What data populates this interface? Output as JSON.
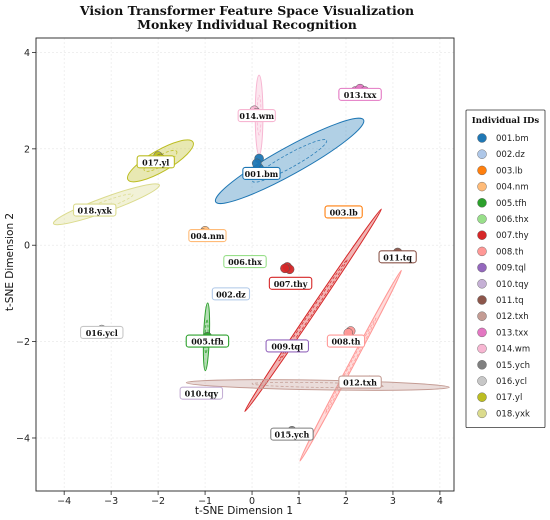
{
  "chart_data": {
    "type": "scatter",
    "title": "Vision Transformer Feature Space Visualization",
    "subtitle": "Monkey Individual Recognition",
    "xlabel": "t-SNE Dimension 1",
    "ylabel": "t-SNE Dimension 2",
    "xlim": [
      -4.6,
      4.3
    ],
    "ylim": [
      -5.1,
      4.3
    ],
    "xticks": [
      -4,
      -3,
      -2,
      -1,
      0,
      1,
      2,
      3,
      4
    ],
    "yticks": [
      -4,
      -2,
      0,
      2,
      4
    ],
    "grid": true,
    "legend": {
      "title": "Individual IDs",
      "placement": "right"
    },
    "series": [
      {
        "name": "001.bm",
        "color": "#1f77b4",
        "points": [
          [
            0.15,
            1.8
          ],
          [
            0.15,
            1.6
          ],
          [
            0.1,
            1.7
          ]
        ],
        "label_pos": [
          0.2,
          1.48
        ],
        "ellipse": {
          "center": [
            0.8,
            1.75
          ],
          "rx": 1.8,
          "ry": 0.28,
          "angle": -29
        }
      },
      {
        "name": "002.dz",
        "color": "#aec7e8",
        "points": [],
        "label_pos": [
          -0.45,
          -1.02
        ]
      },
      {
        "name": "003.lb",
        "color": "#ff7f0e",
        "points": [
          [
            1.9,
            0.65
          ]
        ],
        "label_pos": [
          1.95,
          0.68
        ]
      },
      {
        "name": "004.nm",
        "color": "#ffbb78",
        "points": [
          [
            -1,
            0.3
          ],
          [
            -1.05,
            0.25
          ]
        ],
        "label_pos": [
          -0.95,
          0.19
        ]
      },
      {
        "name": "005.tfh",
        "color": "#2ca02c",
        "points": [
          [
            -0.97,
            -2.0
          ],
          [
            -0.95,
            -1.9
          ]
        ],
        "label_pos": [
          -0.95,
          -2.0
        ],
        "ellipse": {
          "center": [
            -0.97,
            -1.9
          ],
          "rx": 0.72,
          "ry": 0.06,
          "angle": -88
        }
      },
      {
        "name": "006.thx",
        "color": "#98df8a",
        "points": [],
        "label_pos": [
          -0.15,
          -0.35
        ]
      },
      {
        "name": "007.thy",
        "color": "#d62728",
        "points": [
          [
            0.75,
            -0.45
          ],
          [
            0.8,
            -0.5
          ],
          [
            0.7,
            -0.48
          ]
        ],
        "label_pos": [
          0.82,
          -0.8
        ],
        "ellipse": {
          "center": [
            1.3,
            -1.35
          ],
          "rx": 2.6,
          "ry": 0.06,
          "angle": -56
        }
      },
      {
        "name": "008.th",
        "color": "#ff9896",
        "points": [
          [
            2.1,
            -1.78
          ],
          [
            2.05,
            -1.82
          ]
        ],
        "label_pos": [
          2.0,
          -2.0
        ],
        "ellipse": {
          "center": [
            2.1,
            -2.5
          ],
          "rx": 2.3,
          "ry": 0.05,
          "angle": -62
        }
      },
      {
        "name": "009.tql",
        "color": "#9467bd",
        "points": [],
        "label_pos": [
          0.75,
          -2.1
        ]
      },
      {
        "name": "010.tqy",
        "color": "#c5b0d5",
        "points": [
          [
            -1,
            -3.05
          ]
        ],
        "label_pos": [
          -1.08,
          -3.08
        ]
      },
      {
        "name": "011.tq",
        "color": "#8c564b",
        "points": [
          [
            3.1,
            -0.15
          ],
          [
            3.05,
            -0.2
          ]
        ],
        "label_pos": [
          3.1,
          -0.25
        ]
      },
      {
        "name": "012.txh",
        "color": "#c49c94",
        "points": [
          [
            2.5,
            -2.8
          ]
        ],
        "label_pos": [
          2.3,
          -2.85
        ],
        "ellipse": {
          "center": [
            1.4,
            -2.9
          ],
          "rx": 2.8,
          "ry": 0.1,
          "angle": 1
        }
      },
      {
        "name": "013.txx",
        "color": "#e377c2",
        "points": [
          [
            2.2,
            3.2
          ],
          [
            2.3,
            3.25
          ],
          [
            2.4,
            3.2
          ]
        ],
        "label_pos": [
          2.3,
          3.12
        ]
      },
      {
        "name": "014.wm",
        "color": "#f7b6d2",
        "points": [
          [
            0.05,
            2.8
          ],
          [
            0.1,
            2.75
          ]
        ],
        "label_pos": [
          0.1,
          2.68
        ],
        "ellipse": {
          "center": [
            0.15,
            2.7
          ],
          "rx": 0.85,
          "ry": 0.08,
          "angle": 90
        }
      },
      {
        "name": "015.ych",
        "color": "#7f7f7f",
        "points": [
          [
            0.85,
            -3.85
          ],
          [
            0.9,
            -3.9
          ]
        ],
        "label_pos": [
          0.85,
          -3.93
        ]
      },
      {
        "name": "016.ycl",
        "color": "#c7c7c7",
        "points": [
          [
            -3.2,
            -1.75
          ],
          [
            -3.1,
            -1.8
          ]
        ],
        "label_pos": [
          -3.2,
          -1.82
        ]
      },
      {
        "name": "017.yl",
        "color": "#bcbd22",
        "points": [
          [
            -2.0,
            1.85
          ],
          [
            -1.95,
            1.8
          ]
        ],
        "label_pos": [
          -2.05,
          1.72
        ],
        "ellipse": {
          "center": [
            -1.95,
            1.75
          ],
          "rx": 0.8,
          "ry": 0.22,
          "angle": -30
        }
      },
      {
        "name": "018.yxk",
        "color": "#dbdb8d",
        "points": [
          [
            -3.4,
            0.75
          ],
          [
            -3.3,
            0.72
          ]
        ],
        "label_pos": [
          -3.35,
          0.72
        ],
        "ellipse": {
          "center": [
            -3.1,
            0.85
          ],
          "rx": 1.2,
          "ry": 0.15,
          "angle": -20
        }
      }
    ]
  }
}
